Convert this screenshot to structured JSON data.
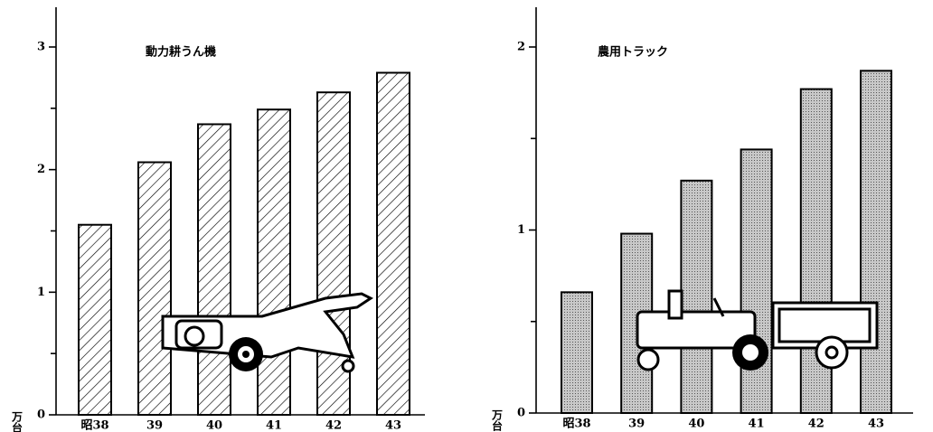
{
  "chart_data": [
    {
      "type": "bar",
      "title": "動力耕うん機",
      "y_label": "万台",
      "categories": [
        "昭38",
        "39",
        "40",
        "41",
        "42",
        "43"
      ],
      "values": [
        1.55,
        2.06,
        2.37,
        2.49,
        2.63,
        2.79
      ],
      "pattern": "hatch",
      "color": "#000000",
      "ylim": [
        0,
        3
      ],
      "yticks": [
        0,
        1,
        2,
        3
      ],
      "minor_yticks": [
        0.5,
        1.5,
        2.5
      ]
    },
    {
      "type": "bar",
      "title": "農用トラック",
      "y_label": "万台",
      "categories": [
        "昭38",
        "39",
        "40",
        "41",
        "42",
        "43"
      ],
      "values": [
        0.66,
        0.98,
        1.27,
        1.44,
        1.77,
        1.87
      ],
      "pattern": "dots",
      "color": "#000000",
      "ylim": [
        0,
        2
      ],
      "yticks": [
        0,
        1,
        2
      ],
      "minor_yticks": [
        0.5,
        1.5
      ]
    }
  ]
}
